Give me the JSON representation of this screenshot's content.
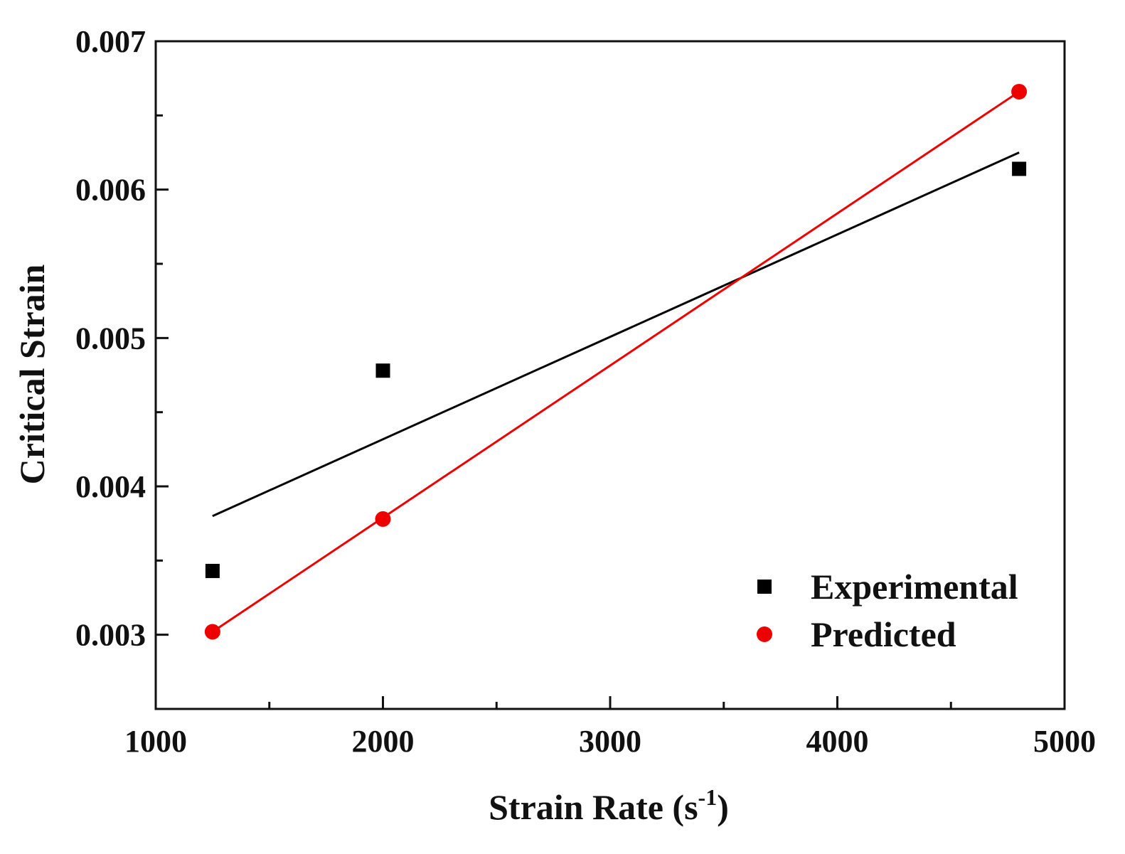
{
  "chart_data": {
    "type": "scatter",
    "title": "",
    "xlabel": "Strain Rate (s",
    "xlabel_superscript": "-1",
    "xlabel_suffix": ")",
    "ylabel": "Critical Strain",
    "xlim": [
      1000,
      5000
    ],
    "ylim": [
      0.0025,
      0.007
    ],
    "x_ticks": [
      1000,
      2000,
      3000,
      4000,
      5000
    ],
    "x_tick_labels": [
      "1000",
      "2000",
      "3000",
      "4000",
      "5000"
    ],
    "x_minor_ticks": [
      1500,
      2500,
      3500,
      4500
    ],
    "y_ticks": [
      0.003,
      0.004,
      0.005,
      0.006,
      0.007
    ],
    "y_tick_labels": [
      "0.003",
      "0.004",
      "0.005",
      "0.006",
      "0.007"
    ],
    "y_minor_ticks": [
      0.0035,
      0.0045,
      0.0055,
      0.0065
    ],
    "grid": false,
    "legend_position": "bottom-right",
    "series": [
      {
        "name": "Experimental",
        "marker": "square",
        "color": "#000000",
        "x": [
          1250,
          2000,
          4800
        ],
        "y": [
          0.00343,
          0.00478,
          0.00614
        ],
        "fit_line": {
          "x": [
            1250,
            4800
          ],
          "y": [
            0.0038,
            0.00625
          ],
          "color": "#000000"
        }
      },
      {
        "name": "Predicted",
        "marker": "circle",
        "color": "#ee0000",
        "x": [
          1250,
          2000,
          4800
        ],
        "y": [
          0.00302,
          0.00378,
          0.00666
        ],
        "fit_line": {
          "x": [
            1250,
            4800
          ],
          "y": [
            0.00302,
            0.00666
          ],
          "color": "#ee0000"
        }
      }
    ]
  }
}
